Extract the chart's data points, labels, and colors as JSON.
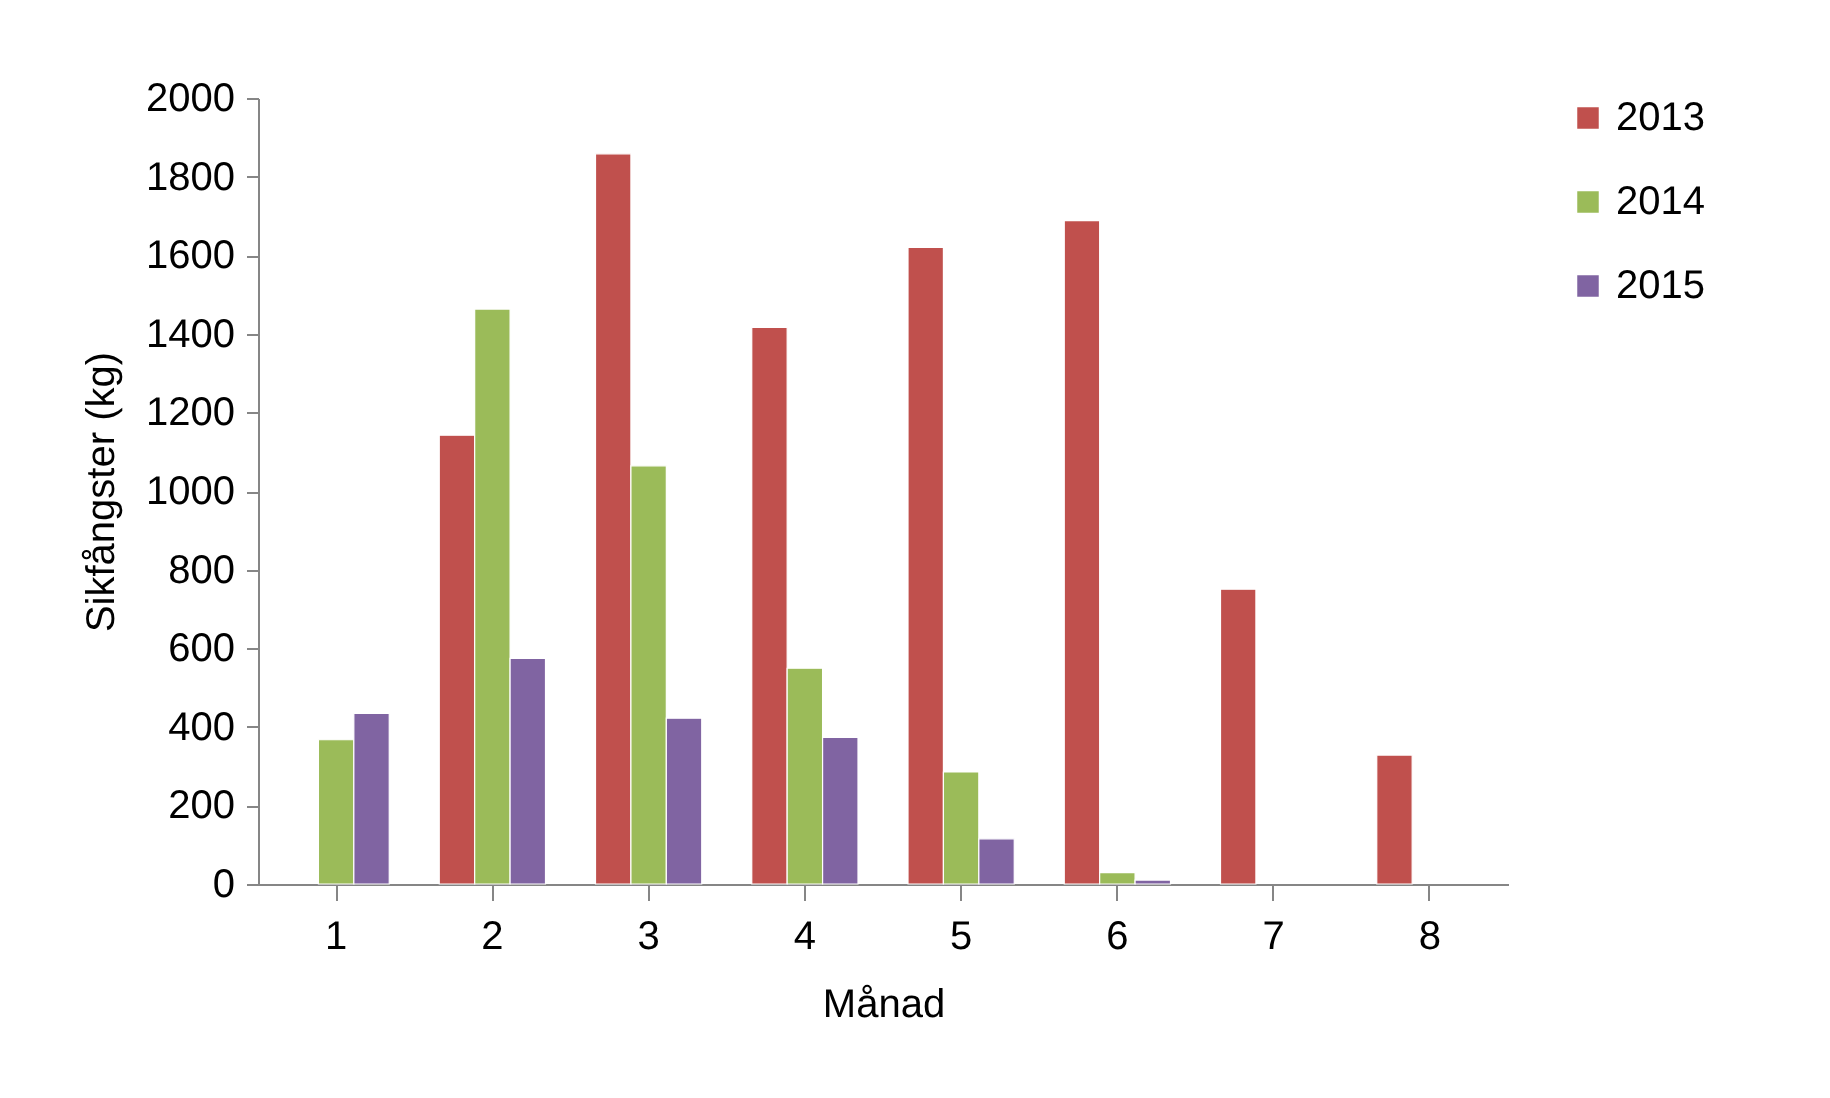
{
  "chart_data": {
    "type": "bar",
    "xlabel": "Månad",
    "ylabel": "Sikfångster (kg)",
    "categories": [
      "1",
      "2",
      "3",
      "4",
      "5",
      "6",
      "7",
      "8"
    ],
    "series": [
      {
        "name": "2013",
        "color": "#c0504d",
        "values": [
          null,
          1142,
          1858,
          1416,
          1620,
          1688,
          750,
          328
        ]
      },
      {
        "name": "2014",
        "color": "#9bbb59",
        "values": [
          367,
          1463,
          1064,
          549,
          285,
          29,
          null,
          null
        ]
      },
      {
        "name": "2015",
        "color": "#8064a2",
        "values": [
          434,
          574,
          422,
          373,
          115,
          10,
          null,
          null
        ]
      }
    ],
    "ylim": [
      0,
      2000
    ],
    "yticks": [
      0,
      200,
      400,
      600,
      800,
      1000,
      1200,
      1400,
      1600,
      1800,
      2000
    ],
    "grid": false,
    "legend": "right"
  }
}
